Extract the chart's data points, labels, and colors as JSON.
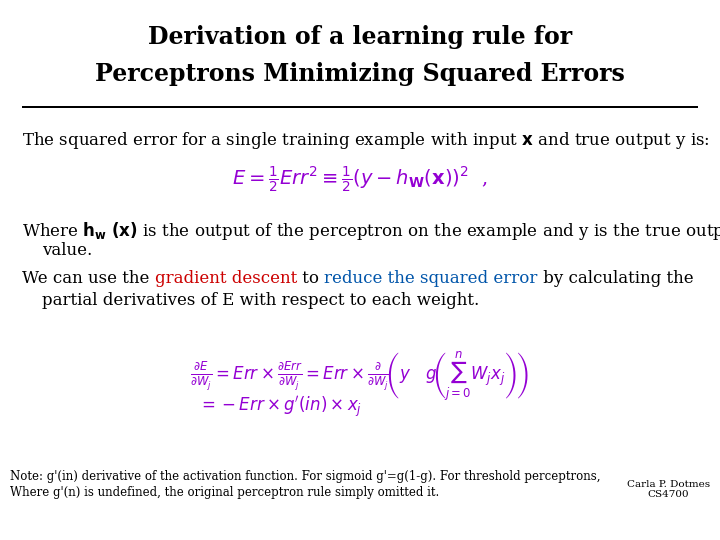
{
  "title_line1": "Derivation of a learning rule for",
  "title_line2": "Perceptrons Minimizing Squared Errors",
  "title_fontsize": 17,
  "bg_color": "#ffffff",
  "text_color": "#000000",
  "body_fontsize": 12,
  "small_fontsize": 8.5,
  "eq_color": "#9400d3",
  "red_color": "#cc0000",
  "blue_color": "#0055aa",
  "note1": "Note: g'(in) derivative of the activation function. For sigmoid g'=g(1-g). For threshold perceptrons,",
  "note2": "Where g'(n) is undefined, the original perceptron rule simply omitted it.",
  "credit": "Carla P. Dotmes\nCS4700",
  "credit_fontsize": 7.5,
  "note_fontsize": 8.5
}
